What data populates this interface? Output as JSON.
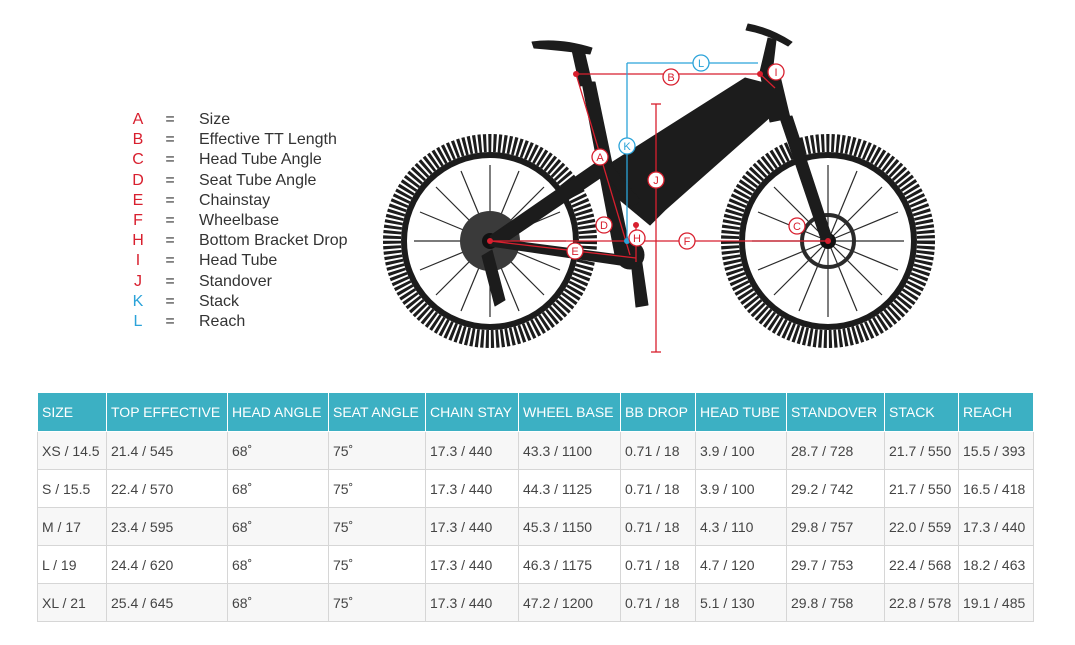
{
  "legend": [
    {
      "letter": "A",
      "equals": "=",
      "label": "Size",
      "color": "#d81f2e"
    },
    {
      "letter": "B",
      "equals": "=",
      "label": "Effective TT Length",
      "color": "#d81f2e"
    },
    {
      "letter": "C",
      "equals": "=",
      "label": "Head Tube Angle",
      "color": "#d81f2e"
    },
    {
      "letter": "D",
      "equals": "=",
      "label": "Seat Tube Angle",
      "color": "#d81f2e"
    },
    {
      "letter": "E",
      "equals": "=",
      "label": "Chainstay",
      "color": "#d81f2e"
    },
    {
      "letter": "F",
      "equals": "=",
      "label": "Wheelbase",
      "color": "#d81f2e"
    },
    {
      "letter": "H",
      "equals": "=",
      "label": "Bottom Bracket Drop",
      "color": "#d81f2e"
    },
    {
      "letter": "I",
      "equals": "=",
      "label": "Head Tube",
      "color": "#d81f2e"
    },
    {
      "letter": "J",
      "equals": "=",
      "label": "Standover",
      "color": "#d81f2e"
    },
    {
      "letter": "K",
      "equals": "=",
      "label": "Stack",
      "color": "#2ba3d9"
    },
    {
      "letter": "L",
      "equals": "=",
      "label": "Reach",
      "color": "#2ba3d9"
    }
  ],
  "diagram_markers": {
    "A": "A",
    "B": "B",
    "C": "C",
    "D": "D",
    "E": "E",
    "F": "F",
    "H": "H",
    "I": "I",
    "J": "J",
    "K": "K",
    "L": "L"
  },
  "table": {
    "headers": [
      "SIZE",
      "TOP EFFECTIVE",
      "HEAD ANGLE",
      "SEAT ANGLE",
      "CHAIN STAY",
      "WHEEL BASE",
      "BB DROP",
      "HEAD TUBE",
      "STANDOVER",
      "STACK",
      "REACH"
    ],
    "rows": [
      [
        "XS / 14.5",
        "21.4 / 545",
        "68˚",
        "75˚",
        "17.3 / 440",
        "43.3 / 1100",
        "0.71 / 18",
        "3.9 / 100",
        "28.7 / 728",
        "21.7 / 550",
        "15.5 / 393"
      ],
      [
        "S / 15.5",
        "22.4 / 570",
        "68˚",
        "75˚",
        "17.3 / 440",
        "44.3 / 1125",
        "0.71 / 18",
        "3.9 / 100",
        "29.2 / 742",
        "21.7 / 550",
        "16.5 / 418"
      ],
      [
        "M / 17",
        "23.4 / 595",
        "68˚",
        "75˚",
        "17.3 / 440",
        "45.3 / 1150",
        "0.71 / 18",
        "4.3 / 110",
        "29.8 / 757",
        "22.0 / 559",
        "17.3 / 440"
      ],
      [
        "L / 19",
        "24.4 / 620",
        "68˚",
        "75˚",
        "17.3 / 440",
        "46.3 / 1175",
        "0.71 / 18",
        "4.7 / 120",
        "29.7 / 753",
        "22.4 / 568",
        "18.2 / 463"
      ],
      [
        "XL / 21",
        "25.4 / 645",
        "68˚",
        "75˚",
        "17.3 / 440",
        "47.2 / 1200",
        "0.71 / 18",
        "5.1 / 130",
        "29.8 / 758",
        "22.8 / 578",
        "19.1 / 485"
      ]
    ]
  },
  "colors": {
    "accent_red": "#d81f2e",
    "accent_blue": "#2ba3d9",
    "header_bg": "#3cb0c3",
    "bike": "#1c1c1c"
  }
}
